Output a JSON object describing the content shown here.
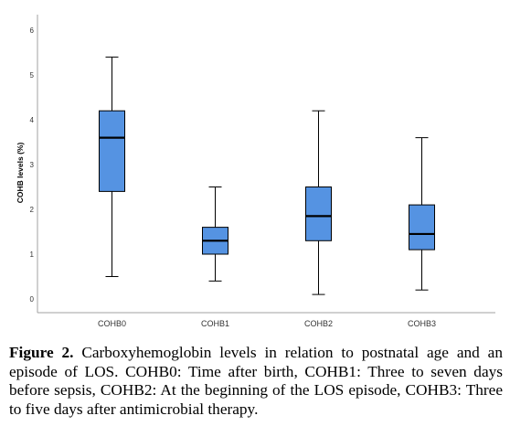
{
  "chart_data": {
    "type": "boxplot",
    "ylabel": "COHB levels (%)",
    "ylim": [
      -0.3,
      6.4
    ],
    "yticks": [
      0,
      1,
      2,
      3,
      4,
      5,
      6
    ],
    "categories": [
      "COHB0",
      "COHB1",
      "COHB2",
      "COHB3"
    ],
    "boxes": [
      {
        "min": 0.5,
        "q1": 2.4,
        "median": 3.6,
        "q3": 4.2,
        "max": 5.4
      },
      {
        "min": 0.4,
        "q1": 1.0,
        "median": 1.3,
        "q3": 1.6,
        "max": 2.5
      },
      {
        "min": 0.1,
        "q1": 1.3,
        "median": 1.85,
        "q3": 2.5,
        "max": 4.2
      },
      {
        "min": 0.2,
        "q1": 1.1,
        "median": 1.45,
        "q3": 2.1,
        "max": 3.6
      }
    ],
    "box_color": "#5593e2",
    "grid": false
  },
  "caption": {
    "label": "Figure 2.",
    "text": " Carboxyhemoglobin levels in relation to postnatal age and an episode of LOS. COHB0: Time after birth, COHB1: Three to seven days before sepsis, COHB2: At the beginning of the LOS episode, COHB3: Three to five days after antimicrobial therapy."
  }
}
